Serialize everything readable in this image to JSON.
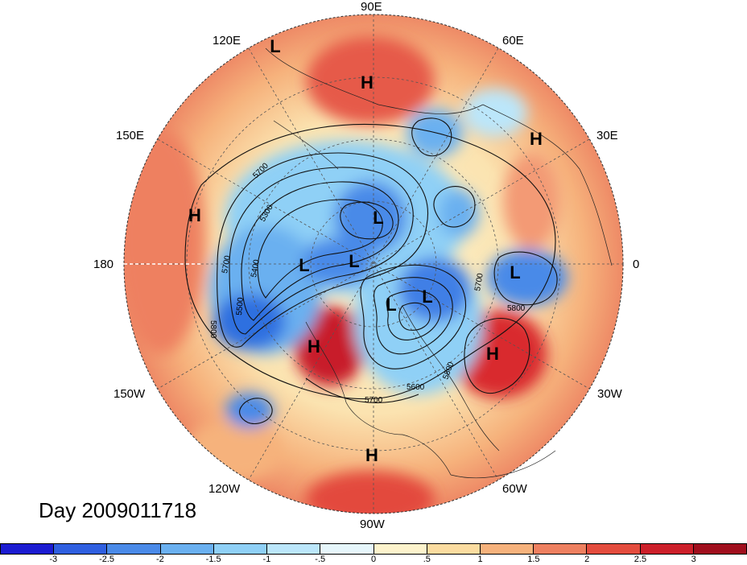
{
  "map": {
    "projection": "north polar stereographic",
    "date_label": "Day 2009011718",
    "lon_labels": {
      "top": "90E",
      "upper_left": "120E",
      "upper_right": "60E",
      "left_upper": "150E",
      "right_upper": "30E",
      "left": "180",
      "right": "0",
      "left_lower": "150W",
      "right_lower": "30W",
      "lower_left": "120W",
      "lower_right": "60W",
      "bottom": "90W"
    },
    "pressure_centers": [
      {
        "label": "L"
      },
      {
        "label": "H"
      },
      {
        "label": "H"
      },
      {
        "label": "H"
      },
      {
        "label": "L"
      },
      {
        "label": "L"
      },
      {
        "label": "L"
      },
      {
        "label": "L"
      },
      {
        "label": "L"
      },
      {
        "label": "L"
      },
      {
        "label": "H"
      },
      {
        "label": "H"
      },
      {
        "label": "H"
      }
    ],
    "contour_labels": [
      "5700",
      "5300",
      "5700",
      "5400",
      "5500",
      "5800",
      "5800",
      "5700",
      "5600",
      "5800",
      "5700"
    ]
  },
  "colorbar": {
    "ticks": [
      "-3",
      "-2.5",
      "-2",
      "-1.5",
      "-1",
      "-.5",
      "0",
      ".5",
      "1",
      "1.5",
      "2",
      "2.5",
      "3"
    ],
    "colors": [
      "#1b1bd1",
      "#2f5fe0",
      "#4a8ae8",
      "#6ab0f0",
      "#8fd0f6",
      "#bbe6fa",
      "#e6f6fb",
      "#fdf3cc",
      "#fbdca0",
      "#f6b27c",
      "#ee8060",
      "#e44c3e",
      "#cc1f2a",
      "#a00e1d"
    ]
  }
}
